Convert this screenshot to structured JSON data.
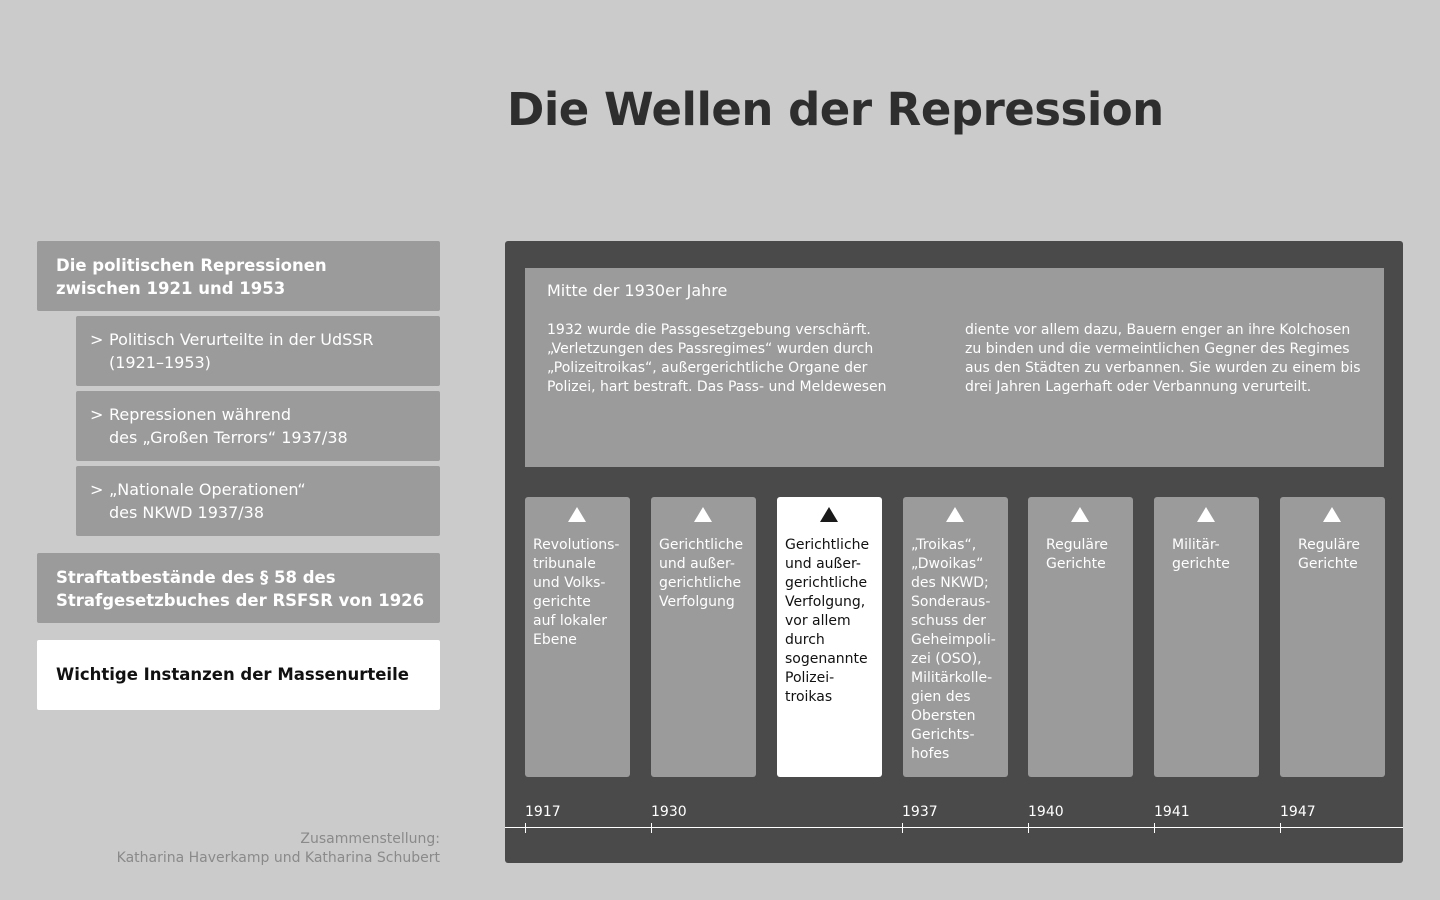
{
  "title": "Die Wellen der Repression",
  "nav": {
    "items": [
      {
        "lines": [
          "Die politischen Repressionen",
          "zwischen 1921 und 1953"
        ]
      },
      {
        "lines": [
          "Straftatbestände des § 58 des",
          "Strafgesetzbuches der RSFSR von 1926"
        ]
      },
      {
        "lines": [
          "Wichtige Instanzen der Massenurteile"
        ],
        "active": true
      }
    ],
    "subitems": [
      {
        "chevron": ">",
        "lines": [
          "Politisch Verurteilte in der UdSSR",
          "(1921–1953)"
        ]
      },
      {
        "chevron": ">",
        "lines": [
          "Repressionen während",
          "des „Großen Terrors“ 1937/38"
        ]
      },
      {
        "chevron": ">",
        "lines": [
          "„Nationale Operationen“",
          "des NKWD 1937/38"
        ]
      }
    ]
  },
  "credit": {
    "lines": [
      "Zusammenstellung:",
      "Katharina Haverkamp und Katharina Schubert"
    ]
  },
  "info": {
    "heading": "Mitte der 1930er Jahre",
    "col1": [
      "1932 wurde die Passgesetzgebung verschärft.",
      "„Verletzungen des Passregimes“ wurden durch",
      "„Polizeitroikas“, außergerichtliche Organe der",
      "Polizei, hart bestraft. Das Pass- und Meldewesen"
    ],
    "col2": [
      "diente vor allem dazu, Bauern enger an ihre Kolchosen",
      "zu binden und die vermeintlichen Gegner des Regimes",
      "aus den Städten zu verbannen. Sie wurden zu einem bis",
      "drei Jahren Lagerhaft oder Verbannung verurteilt."
    ]
  },
  "cards": [
    {
      "icon": "triangle-up-icon",
      "lines": [
        "Revolutions-",
        "tribunale",
        "und Volks-",
        "gerichte",
        "auf lokaler",
        "Ebene"
      ]
    },
    {
      "icon": "triangle-up-icon",
      "lines": [
        "Gerichtliche",
        "und außer-",
        "gerichtliche",
        "Verfolgung"
      ]
    },
    {
      "icon": "triangle-up-icon",
      "active": true,
      "lines": [
        "Gerichtliche",
        "und außer-",
        "gerichtliche",
        "Verfolgung,",
        "vor allem",
        "durch",
        "sogenannte",
        "Polizei-",
        "troikas"
      ]
    },
    {
      "icon": "triangle-up-icon",
      "lines": [
        "„Troikas“,",
        "„Dwoikas“",
        "des NKWD;",
        "Sonderaus-",
        "schuss der",
        "Geheimpoli-",
        "zei (OSO),",
        "Militärkolle-",
        "gien des",
        "Obersten",
        "Gerichts-",
        "hofes"
      ]
    },
    {
      "icon": "triangle-up-icon",
      "lines": [
        "Reguläre",
        "Gerichte"
      ]
    },
    {
      "icon": "triangle-up-icon",
      "lines": [
        "Militär-",
        "gerichte"
      ]
    },
    {
      "icon": "triangle-up-icon",
      "lines": [
        "Reguläre",
        "Gerichte"
      ]
    }
  ],
  "timeline": {
    "years": [
      "1917",
      "1930",
      "1937",
      "1940",
      "1941",
      "1947"
    ]
  },
  "colors": {
    "background": "#cbcbcb",
    "panel": "#4a4a4a",
    "box": "#9b9b9b",
    "active": "#ffffff",
    "title": "#2e2e2e"
  }
}
